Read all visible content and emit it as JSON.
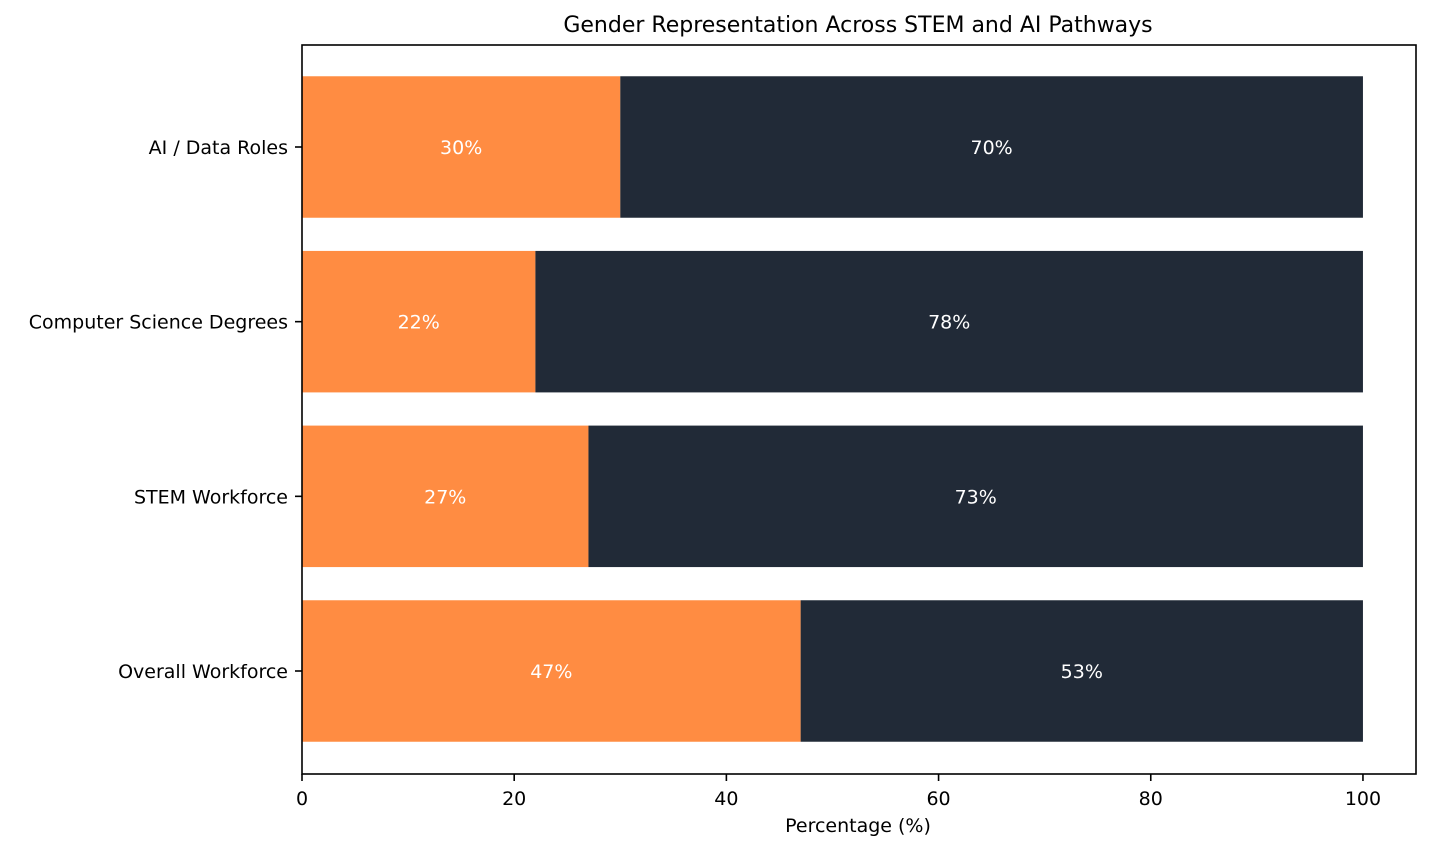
{
  "chart_data": {
    "type": "bar",
    "orientation": "horizontal",
    "stacked": true,
    "title": "Gender Representation Across STEM and AI Pathways",
    "xlabel": "Percentage (%)",
    "ylabel": "",
    "xlim": [
      0,
      105
    ],
    "x_ticks": [
      0,
      20,
      40,
      60,
      80,
      100
    ],
    "grid": false,
    "legend": "none",
    "categories": [
      "AI / Data Roles",
      "Computer Science Degrees",
      "STEM Workforce",
      "Overall Workforce"
    ],
    "series": [
      {
        "values": [
          30,
          22,
          27,
          47
        ],
        "color": "#ff8c42"
      },
      {
        "values": [
          70,
          78,
          73,
          53
        ],
        "color": "#212a37"
      }
    ],
    "data_labels": [
      [
        "30%",
        "22%",
        "27%",
        "47%"
      ],
      [
        "70%",
        "78%",
        "73%",
        "53%"
      ]
    ]
  }
}
